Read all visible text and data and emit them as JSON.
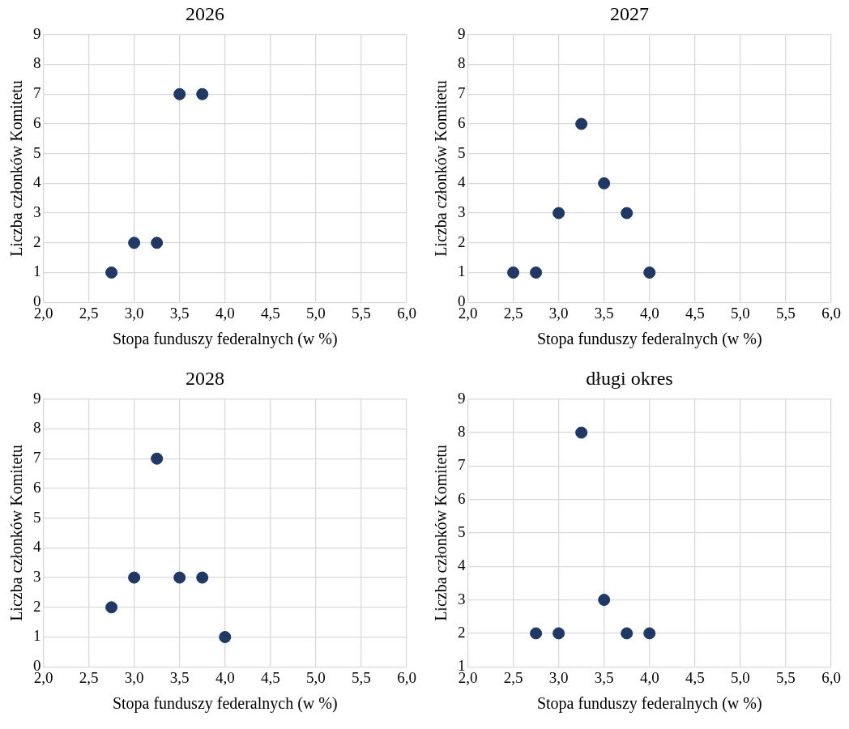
{
  "chart_data": [
    {
      "type": "scatter",
      "title": "2026",
      "xlabel": "Stopa funduszy federalnych (w %)",
      "ylabel": "Liczba członków Komitetu",
      "x": [
        2.75,
        3.0,
        3.25,
        3.5,
        3.75
      ],
      "series": [
        {
          "color": "#203864",
          "values": [
            1,
            2,
            2,
            7,
            7
          ]
        }
      ],
      "xlim": [
        2,
        6
      ],
      "xticks": [
        {
          "value": 2,
          "label": "2,0"
        },
        {
          "value": 2.5,
          "label": "2,5"
        },
        {
          "value": 3,
          "label": "3,0"
        },
        {
          "value": 3.5,
          "label": "3,5"
        },
        {
          "value": 4,
          "label": "4,0"
        },
        {
          "value": 4.5,
          "label": "4,5"
        },
        {
          "value": 5,
          "label": "5,0"
        },
        {
          "value": 5.5,
          "label": "5,5"
        },
        {
          "value": 6,
          "label": "6,0"
        }
      ],
      "ylim": [
        0,
        9
      ],
      "yticks": [
        0,
        1,
        2,
        3,
        4,
        5,
        6,
        7,
        8,
        9
      ],
      "grid": true,
      "marker": "circle"
    },
    {
      "type": "scatter",
      "title": "2027",
      "xlabel": "Stopa funduszy federalnych (w %)",
      "ylabel": "Liczba członków Komitetu",
      "x": [
        2.5,
        2.75,
        3.0,
        3.25,
        3.5,
        3.75,
        4.0
      ],
      "series": [
        {
          "color": "#203864",
          "values": [
            1,
            1,
            3,
            6,
            4,
            3,
            1
          ]
        }
      ],
      "xlim": [
        2,
        6
      ],
      "xticks": [
        {
          "value": 2,
          "label": "2,0"
        },
        {
          "value": 2.5,
          "label": "2,5"
        },
        {
          "value": 3,
          "label": "3,0"
        },
        {
          "value": 3.5,
          "label": "3,5"
        },
        {
          "value": 4,
          "label": "4,0"
        },
        {
          "value": 4.5,
          "label": "4,5"
        },
        {
          "value": 5,
          "label": "5,0"
        },
        {
          "value": 5.5,
          "label": "5,5"
        },
        {
          "value": 6,
          "label": "6,0"
        }
      ],
      "ylim": [
        0,
        9
      ],
      "yticks": [
        0,
        1,
        2,
        3,
        4,
        5,
        6,
        7,
        8,
        9
      ],
      "grid": true,
      "marker": "circle"
    },
    {
      "type": "scatter",
      "title": "2028",
      "xlabel": "Stopa funduszy federalnych (w %)",
      "ylabel": "Liczba członków Komitetu",
      "x": [
        2.75,
        3.0,
        3.25,
        3.5,
        3.75,
        4.0
      ],
      "series": [
        {
          "color": "#203864",
          "values": [
            2,
            3,
            7,
            3,
            3,
            1
          ]
        }
      ],
      "xlim": [
        2,
        6
      ],
      "xticks": [
        {
          "value": 2,
          "label": "2,0"
        },
        {
          "value": 2.5,
          "label": "2,5"
        },
        {
          "value": 3,
          "label": "3,0"
        },
        {
          "value": 3.5,
          "label": "3,5"
        },
        {
          "value": 4,
          "label": "4,0"
        },
        {
          "value": 4.5,
          "label": "4,5"
        },
        {
          "value": 5,
          "label": "5,0"
        },
        {
          "value": 5.5,
          "label": "5,5"
        },
        {
          "value": 6,
          "label": "6,0"
        }
      ],
      "ylim": [
        0,
        9
      ],
      "yticks": [
        0,
        1,
        2,
        3,
        4,
        5,
        6,
        7,
        8,
        9
      ],
      "grid": true,
      "marker": "circle"
    },
    {
      "type": "scatter",
      "title": "długi okres",
      "xlabel": "Stopa funduszy federalnych (w %)",
      "ylabel": "Liczba członków Komitetu",
      "x": [
        2.75,
        3.0,
        3.25,
        3.5,
        3.75,
        4.0
      ],
      "series": [
        {
          "color": "#203864",
          "values": [
            2,
            2,
            8,
            3,
            2,
            2
          ]
        }
      ],
      "xlim": [
        2,
        6
      ],
      "xticks": [
        {
          "value": 2,
          "label": "2,0"
        },
        {
          "value": 2.5,
          "label": "2,5"
        },
        {
          "value": 3,
          "label": "3,0"
        },
        {
          "value": 3.5,
          "label": "3,5"
        },
        {
          "value": 4,
          "label": "4,0"
        },
        {
          "value": 4.5,
          "label": "4,5"
        },
        {
          "value": 5,
          "label": "5,0"
        },
        {
          "value": 5.5,
          "label": "5,5"
        },
        {
          "value": 6,
          "label": "6,0"
        }
      ],
      "ylim": [
        1,
        9
      ],
      "yticks": [
        1,
        2,
        3,
        4,
        5,
        6,
        7,
        8,
        9
      ],
      "grid": true,
      "marker": "circle"
    }
  ]
}
